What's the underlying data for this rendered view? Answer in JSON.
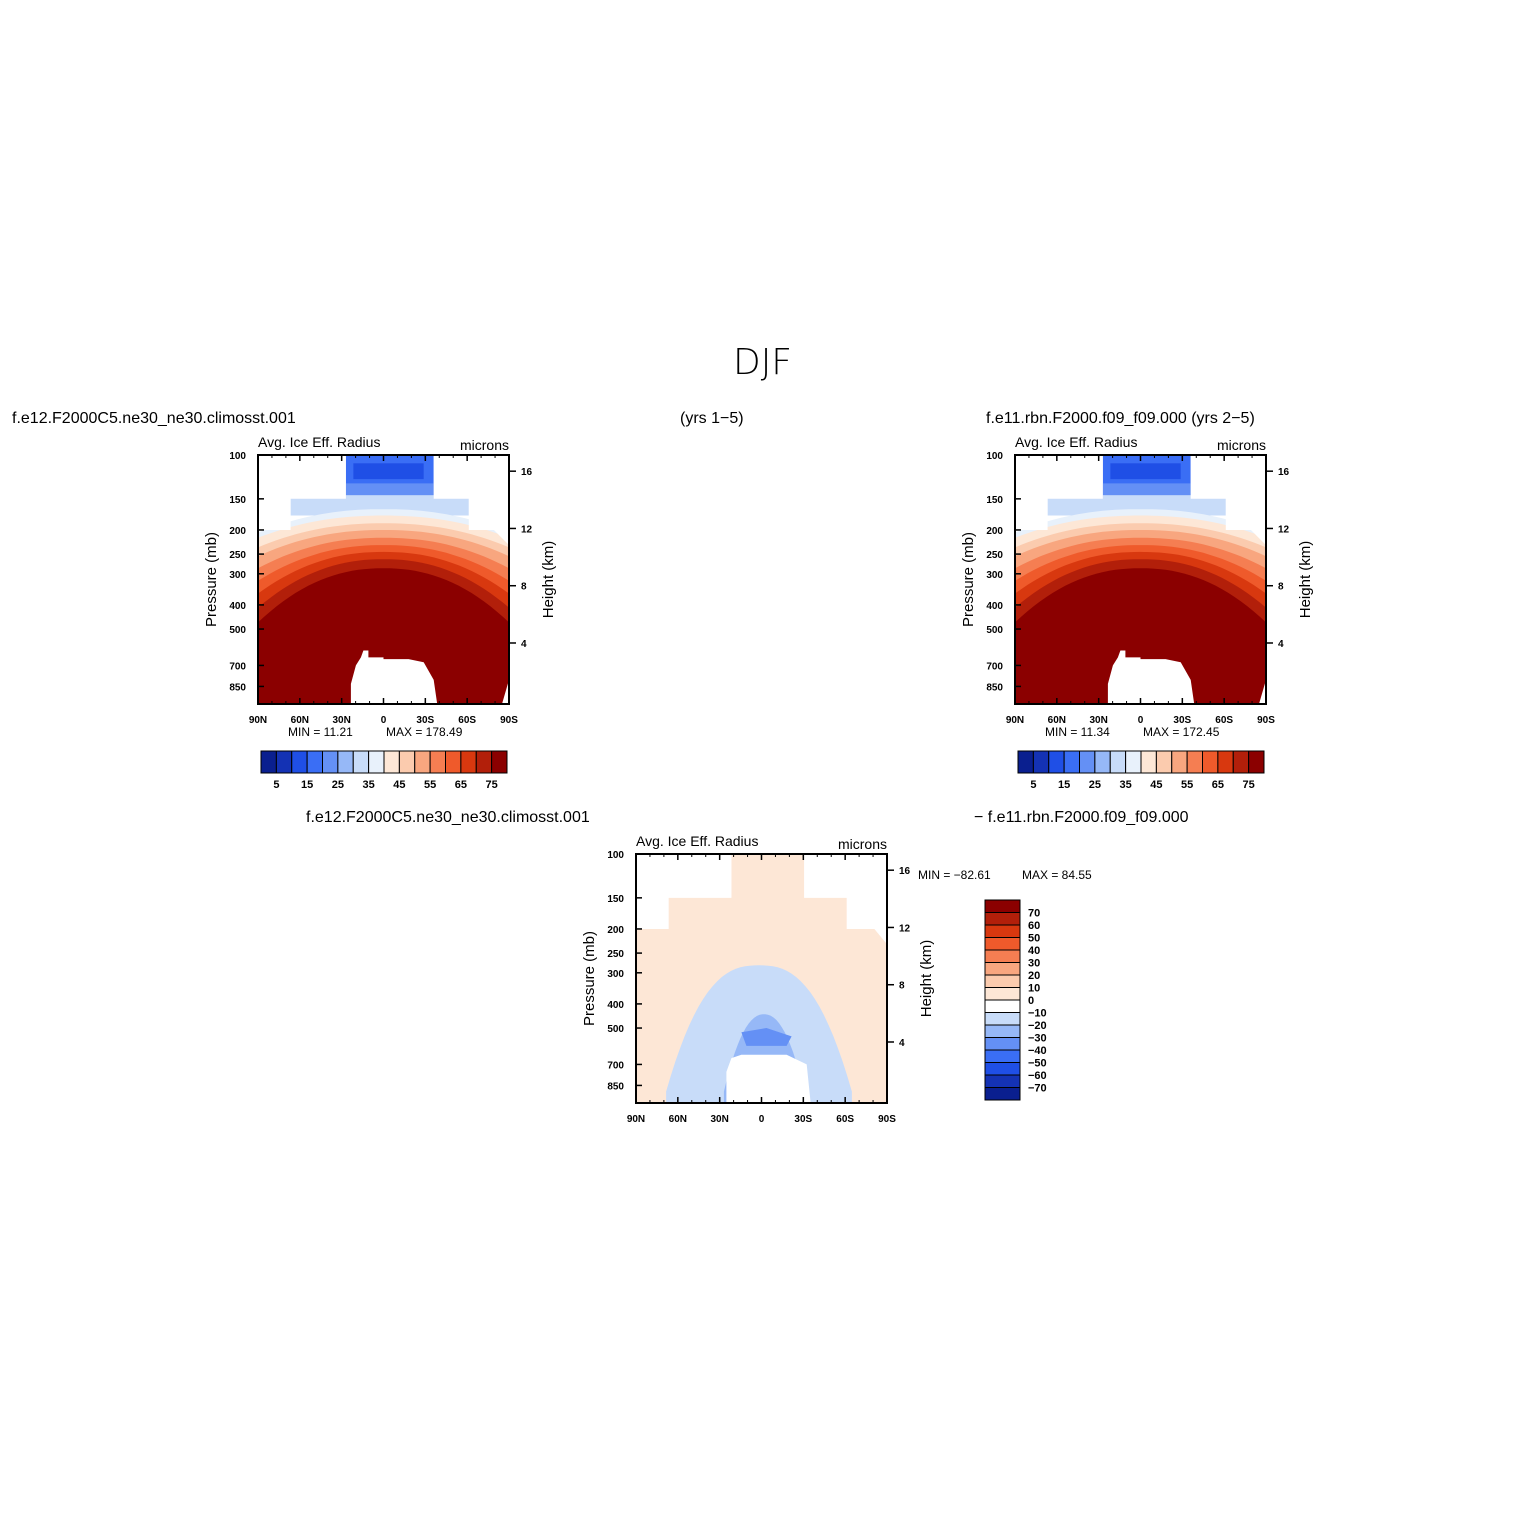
{
  "figure": {
    "title": "DJF",
    "top_left_case": "f.e12.F2000C5.ne30_ne30.climosst.001",
    "top_middle_years": "(yrs  1−5)",
    "top_right_case": "f.e11.rbn.F2000.f09_f09.000  (yrs  2−5)",
    "bottom_left_case": "f.e12.F2000C5.ne30_ne30.climosst.001",
    "bottom_right_case": "−  f.e11.rbn.F2000.f09_f09.000"
  },
  "chart_data": [
    {
      "type": "heatmap",
      "panel": "case-1",
      "title": "Avg. Ice Eff. Radius",
      "units": "microns",
      "ylabel": "Pressure (mb)",
      "y2label": "Height (km)",
      "x_tick_labels": [
        "90N",
        "60N",
        "30N",
        "0",
        "30S",
        "60S",
        "90S"
      ],
      "y_tick_labels": [
        "100",
        "150",
        "200",
        "250",
        "300",
        "400",
        "500",
        "700",
        "850"
      ],
      "y2_tick_labels": [
        "16",
        "12",
        "8",
        "4"
      ],
      "min_label": "MIN =   11.21",
      "max_label": "MAX = 178.49",
      "colorbar_labels": [
        "5",
        "15",
        "25",
        "35",
        "45",
        "55",
        "65",
        "75"
      ],
      "colorbar_colors": [
        "#0a1f8f",
        "#1432b4",
        "#1f4fe6",
        "#3a6ef5",
        "#6490f5",
        "#96b8f7",
        "#c8dcf9",
        "#e8f1fb",
        "#fde7d6",
        "#fbcbae",
        "#f8a67f",
        "#f57e52",
        "#ef5a2b",
        "#d8380f",
        "#b21f0a",
        "#8b0000"
      ]
    },
    {
      "type": "heatmap",
      "panel": "case-2",
      "title": "Avg. Ice Eff. Radius",
      "units": "microns",
      "ylabel": "Pressure (mb)",
      "y2label": "Height (km)",
      "x_tick_labels": [
        "90N",
        "60N",
        "30N",
        "0",
        "30S",
        "60S",
        "90S"
      ],
      "y_tick_labels": [
        "100",
        "150",
        "200",
        "250",
        "300",
        "400",
        "500",
        "700",
        "850"
      ],
      "y2_tick_labels": [
        "16",
        "12",
        "8",
        "4"
      ],
      "min_label": "MIN =   11.34",
      "max_label": "MAX = 172.45",
      "colorbar_labels": [
        "5",
        "15",
        "25",
        "35",
        "45",
        "55",
        "65",
        "75"
      ],
      "colorbar_colors": [
        "#0a1f8f",
        "#1432b4",
        "#1f4fe6",
        "#3a6ef5",
        "#6490f5",
        "#96b8f7",
        "#c8dcf9",
        "#e8f1fb",
        "#fde7d6",
        "#fbcbae",
        "#f8a67f",
        "#f57e52",
        "#ef5a2b",
        "#d8380f",
        "#b21f0a",
        "#8b0000"
      ]
    },
    {
      "type": "heatmap",
      "panel": "difference",
      "title": "Avg. Ice Eff. Radius",
      "units": "microns",
      "ylabel": "Pressure (mb)",
      "y2label": "Height (km)",
      "x_tick_labels": [
        "90N",
        "60N",
        "30N",
        "0",
        "30S",
        "60S",
        "90S"
      ],
      "y_tick_labels": [
        "100",
        "150",
        "200",
        "250",
        "300",
        "400",
        "500",
        "700",
        "850"
      ],
      "y2_tick_labels": [
        "16",
        "12",
        "8",
        "4"
      ],
      "min_label": "MIN = −82.61",
      "max_label": "MAX =   84.55",
      "colorbar_labels": [
        "70",
        "60",
        "50",
        "40",
        "30",
        "20",
        "10",
        "0",
        "−10",
        "−20",
        "−30",
        "−40",
        "−50",
        "−60",
        "−70"
      ],
      "colorbar_colors": [
        "#8b0000",
        "#b21f0a",
        "#d8380f",
        "#ef5a2b",
        "#f57e52",
        "#f8a67f",
        "#fbcbae",
        "#fde7d6",
        "#ffffff",
        "#c8dcf9",
        "#96b8f7",
        "#6490f5",
        "#3a6ef5",
        "#1f4fe6",
        "#1432b4",
        "#0a1f8f"
      ]
    }
  ]
}
